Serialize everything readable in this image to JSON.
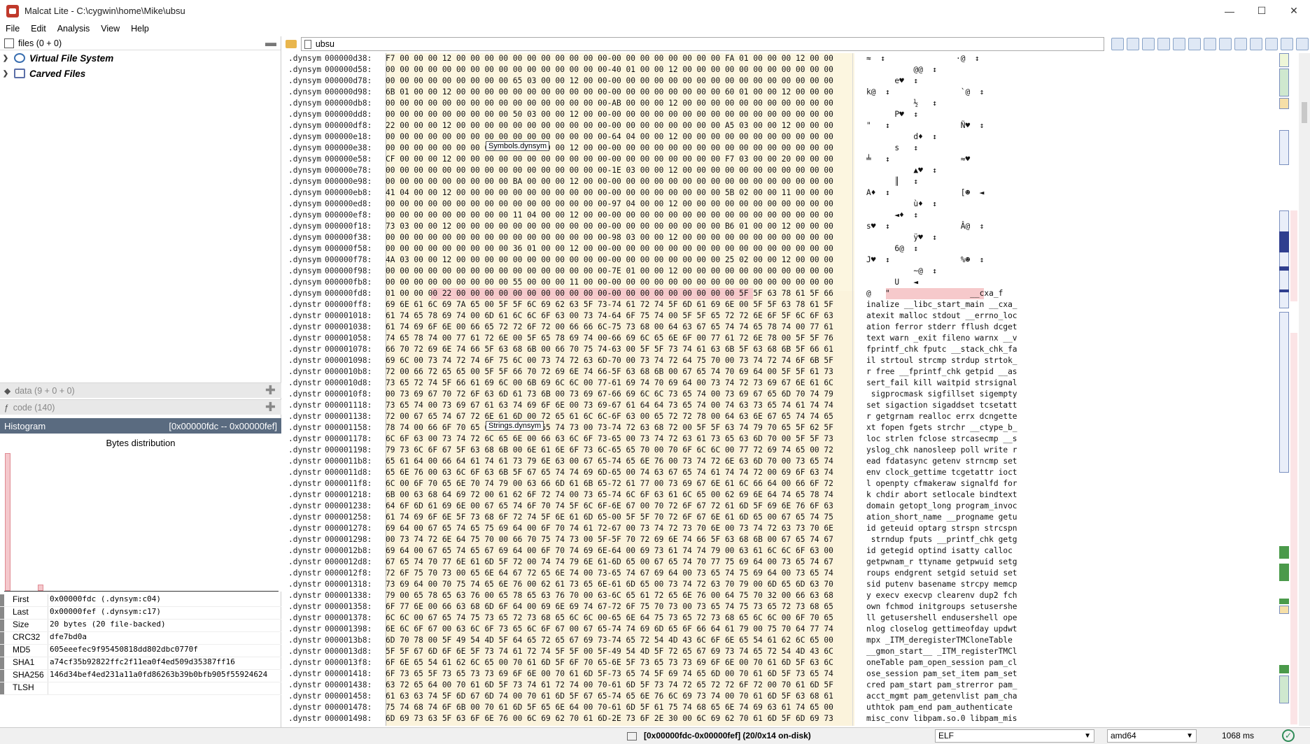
{
  "window": {
    "title": "Malcat Lite - C:\\cygwin\\home\\Mike\\ubsu",
    "minimize": "—",
    "maximize": "☐",
    "close": "✕"
  },
  "menu": [
    "File",
    "Edit",
    "Analysis",
    "View",
    "Help"
  ],
  "files_panel": {
    "header": "files (0 + 0)",
    "items": [
      "Virtual File System",
      "Carved Files"
    ]
  },
  "docks": {
    "data": "data (9 + 0 + 0)",
    "code": "code (140)"
  },
  "histogram": {
    "header": "Histogram",
    "range": "[0x00000fdc -- 0x00000fef]",
    "title": "Bytes distribution"
  },
  "properties": [
    {
      "key": "First",
      "value": "0x00000fdc (.dynsym:c04)"
    },
    {
      "key": "Last",
      "value": "0x00000fef (.dynsym:c17)"
    },
    {
      "key": "Size",
      "value": "20 bytes (20 file-backed)"
    },
    {
      "key": "CRC32",
      "value": "dfe7bd0a"
    },
    {
      "key": "MD5",
      "value": "605eeefec9f95450818dd802dbc0770f"
    },
    {
      "key": "SHA1",
      "value": "a74cf35b92822ffc2f11ea0f4ed509d35387ff16"
    },
    {
      "key": "SHA256",
      "value": "146d34bef4ed231a11a0fd86263b39b0bfb905f55924624"
    },
    {
      "key": "TLSH",
      "value": ""
    }
  ],
  "address_bar": {
    "path": "ubsu"
  },
  "annotations": {
    "symbols": "Symbols.dynsym",
    "strings": "Strings.dynsym"
  },
  "hex_rows": [
    {
      "sec": ".dynsym",
      "addr": "000000d38:",
      "bytes": "F7 00 00 00 12 00 00 00 00 00 00 00 00 00 00 00-00 00 00 00 00 00 00 00 FA 01 00 00 00 12 00 00",
      "ascii": "≈  ↕               ·@  ↕"
    },
    {
      "sec": ".dynsym",
      "addr": "000000d58:",
      "bytes": "00 00 00 00 00 00 00 00 00 00 00 00 00 00 00 00-40 01 00 00 12 00 00 00 00 00 00 00 00 00 00 00",
      "ascii": "          @@  ↕"
    },
    {
      "sec": ".dynsym",
      "addr": "000000d78:",
      "bytes": "00 00 00 00 00 00 00 00 00 65 03 00 00 12 00 00-00 00 00 00 00 00 00 00 00 00 00 00 00 00 00 00",
      "ascii": "      e♥  ↕"
    },
    {
      "sec": ".dynsym",
      "addr": "000000d98:",
      "bytes": "6B 01 00 00 12 00 00 00 00 00 00 00 00 00 00 00-00 00 00 00 00 00 00 00 60 01 00 00 12 00 00 00",
      "ascii": "k@  ↕               `@  ↕"
    },
    {
      "sec": ".dynsym",
      "addr": "000000db8:",
      "bytes": "00 00 00 00 00 00 00 00 00 00 00 00 00 00 00 00-AB 00 00 00 12 00 00 00 00 00 00 00 00 00 00 00",
      "ascii": "          ½   ↕"
    },
    {
      "sec": ".dynsym",
      "addr": "000000dd8:",
      "bytes": "00 00 00 00 00 00 00 00 00 50 03 00 00 12 00 00-00 00 00 00 00 00 00 00 00 00 00 00 00 00 00 00",
      "ascii": "      P♥  ↕"
    },
    {
      "sec": ".dynsym",
      "addr": "000000df8:",
      "bytes": "22 00 00 00 12 00 00 00 00 00 00 00 00 00 00 00-00 00 00 00 00 00 00 00 A5 03 00 00 12 00 00 00",
      "ascii": "\"   ↕               Ñ♥  ↕"
    },
    {
      "sec": ".dynsym",
      "addr": "000000e18:",
      "bytes": "00 00 00 00 00 00 00 00 00 00 00 00 00 00 00 00-64 04 00 00 12 00 00 00 00 00 00 00 00 00 00 00",
      "ascii": "          d♦  ↕"
    },
    {
      "sec": ".dynsym",
      "addr": "000000e38:",
      "bytes": "00 00 00 00 00 00 00 00 00 73 00 00 00 12 00 00-00 00 00 00 00 00 00 00 00 00 00 00 00 00 00 00",
      "ascii": "      s   ↕"
    },
    {
      "sec": ".dynsym",
      "addr": "000000e58:",
      "bytes": "CF 00 00 00 12 00 00 00 00 00 00 00 00 00 00 00-00 00 00 00 00 00 00 00 F7 03 00 00 20 00 00 00",
      "ascii": "╧   ↕               ≈♥"
    },
    {
      "sec": ".dynsym",
      "addr": "000000e78:",
      "bytes": "00 00 00 00 00 00 00 00 00 00 00 00 00 00 00 00-1E 03 00 00 12 00 00 00 00 00 00 00 00 00 00 00",
      "ascii": "          ▲♥  ↕"
    },
    {
      "sec": ".dynsym",
      "addr": "000000e98:",
      "bytes": "00 00 00 00 00 00 00 00 00 BA 00 00 00 12 00 00-00 00 00 00 00 00 00 00 00 00 00 00 00 00 00 00",
      "ascii": "      ║   ↕"
    },
    {
      "sec": ".dynsym",
      "addr": "000000eb8:",
      "bytes": "41 04 00 00 12 00 00 00 00 00 00 00 00 00 00 00-00 00 00 00 00 00 00 00 5B 02 00 00 11 00 00 00",
      "ascii": "A♦  ↕               [☻  ◄"
    },
    {
      "sec": ".dynsym",
      "addr": "000000ed8:",
      "bytes": "00 00 00 00 00 00 00 00 00 00 00 00 00 00 00 00-97 04 00 00 12 00 00 00 00 00 00 00 00 00 00 00",
      "ascii": "          ù♦  ↕"
    },
    {
      "sec": ".dynsym",
      "addr": "000000ef8:",
      "bytes": "00 00 00 00 00 00 00 00 00 11 04 00 00 12 00 00-00 00 00 00 00 00 00 00 00 00 00 00 00 00 00 00",
      "ascii": "      ◄♦  ↕"
    },
    {
      "sec": ".dynsym",
      "addr": "000000f18:",
      "bytes": "73 03 00 00 12 00 00 00 00 00 00 00 00 00 00 00-00 00 00 00 00 00 00 00 B6 01 00 00 12 00 00 00",
      "ascii": "s♥  ↕               Â@  ↕"
    },
    {
      "sec": ".dynsym",
      "addr": "000000f38:",
      "bytes": "00 00 00 00 00 00 00 00 00 00 00 00 00 00 00 00-98 03 00 00 12 00 00 00 00 00 00 00 00 00 00 00",
      "ascii": "          ÿ♥  ↕"
    },
    {
      "sec": ".dynsym",
      "addr": "000000f58:",
      "bytes": "00 00 00 00 00 00 00 00 00 36 01 00 00 12 00 00-00 00 00 00 00 00 00 00 00 00 00 00 00 00 00 00",
      "ascii": "      6@  ↕"
    },
    {
      "sec": ".dynsym",
      "addr": "000000f78:",
      "bytes": "4A 03 00 00 12 00 00 00 00 00 00 00 00 00 00 00-00 00 00 00 00 00 00 00 25 02 00 00 12 00 00 00",
      "ascii": "J♥  ↕               %☻  ↕"
    },
    {
      "sec": ".dynsym",
      "addr": "000000f98:",
      "bytes": "00 00 00 00 00 00 00 00 00 00 00 00 00 00 00 00-7E 01 00 00 12 00 00 00 00 00 00 00 00 00 00 00",
      "ascii": "          ~@  ↕"
    },
    {
      "sec": ".dynsym",
      "addr": "000000fb8:",
      "bytes": "00 00 00 00 00 00 00 00 00 55 00 00 00 11 00 00-00 00 00 00 00 00 00 00 00 00 00 00 00 00 00 00",
      "ascii": "      U   ◄"
    },
    {
      "sec": ".dynsym",
      "addr": "000000fd8:",
      "bytes": "01 00 00 00 22 00 00 00 00 00 00 00 00 00 00 00-00 00 00 00 00 00 00 00 00 5F 5F 63 78 61 5F 66",
      "ascii": "@   \"                 __cxa_f"
    },
    {
      "sec": ".dynstr",
      "addr": "000000ff8:",
      "bytes": "69 6E 61 6C 69 7A 65 00 5F 5F 6C 69 62 63 5F 73-74 61 72 74 5F 6D 61 69 6E 00 5F 5F 63 78 61 5F",
      "ascii": "inalize __libc_start_main __cxa_"
    },
    {
      "sec": ".dynstr",
      "addr": "000001018:",
      "bytes": "61 74 65 78 69 74 00 6D 61 6C 6C 6F 63 00 73 74-64 6F 75 74 00 5F 5F 65 72 72 6E 6F 5F 6C 6F 63",
      "ascii": "atexit malloc stdout __errno_loc"
    },
    {
      "sec": ".dynstr",
      "addr": "000001038:",
      "bytes": "61 74 69 6F 6E 00 66 65 72 72 6F 72 00 66 66 6C-75 73 68 00 64 63 67 65 74 74 65 78 74 00 77 61",
      "ascii": "ation ferror stderr fflush dcget"
    },
    {
      "sec": ".dynstr",
      "addr": "000001058:",
      "bytes": "74 65 78 74 00 77 61 72 6E 00 5F 65 78 69 74 00-66 69 6C 65 6E 6F 00 77 61 72 6E 78 00 5F 5F 76",
      "ascii": "text warn _exit fileno warnx __v"
    },
    {
      "sec": ".dynstr",
      "addr": "000001078:",
      "bytes": "66 70 72 69 6E 74 66 5F 63 68 6B 00 66 70 75 74-63 00 5F 5F 73 74 61 63 6B 5F 63 68 6B 5F 66 61",
      "ascii": "fprintf_chk fputc __stack_chk_fa"
    },
    {
      "sec": ".dynstr",
      "addr": "000001098:",
      "bytes": "69 6C 00 73 74 72 74 6F 75 6C 00 73 74 72 63 6D-70 00 73 74 72 64 75 70 00 73 74 72 74 6F 6B 5F",
      "ascii": "il strtoul strcmp strdup strtok_"
    },
    {
      "sec": ".dynstr",
      "addr": "0000010b8:",
      "bytes": "72 00 66 72 65 65 00 5F 5F 66 70 72 69 6E 74 66-5F 63 68 6B 00 67 65 74 70 69 64 00 5F 5F 61 73",
      "ascii": "r free __fprintf_chk getpid __as"
    },
    {
      "sec": ".dynstr",
      "addr": "0000010d8:",
      "bytes": "73 65 72 74 5F 66 61 69 6C 00 6B 69 6C 6C 00 77-61 69 74 70 69 64 00 73 74 72 73 69 67 6E 61 6C",
      "ascii": "sert_fail kill waitpid strsignal"
    },
    {
      "sec": ".dynstr",
      "addr": "0000010f8:",
      "bytes": "00 73 69 67 70 72 6F 63 6D 61 73 6B 00 73 69 67-66 69 6C 6C 73 65 74 00 73 69 67 65 6D 70 74 79",
      "ascii": " sigprocmask sigfillset sigempty"
    },
    {
      "sec": ".dynstr",
      "addr": "000001118:",
      "bytes": "73 65 74 00 73 69 67 61 63 74 69 6F 6E 00 73 69-67 61 64 64 73 65 74 00 74 63 73 65 74 61 74 74",
      "ascii": "set sigaction sigaddset tcsetatt"
    },
    {
      "sec": ".dynstr",
      "addr": "000001138:",
      "bytes": "72 00 67 65 74 67 72 6E 61 6D 00 72 65 61 6C 6C-6F 63 00 65 72 72 78 00 64 63 6E 67 65 74 74 65",
      "ascii": "r getgrnam realloc errx dcngette"
    },
    {
      "sec": ".dynstr",
      "addr": "000001158:",
      "bytes": "78 74 00 66 6F 70 65 6E 00 66 67 65 74 73 00 73-74 72 63 68 72 00 5F 5F 63 74 79 70 65 5F 62 5F",
      "ascii": "xt fopen fgets strchr __ctype_b_"
    },
    {
      "sec": ".dynstr",
      "addr": "000001178:",
      "bytes": "6C 6F 63 00 73 74 72 6C 65 6E 00 66 63 6C 6F 73-65 00 73 74 72 63 61 73 65 63 6D 70 00 5F 5F 73",
      "ascii": "loc strlen fclose strcasecmp __s"
    },
    {
      "sec": ".dynstr",
      "addr": "000001198:",
      "bytes": "79 73 6C 6F 67 5F 63 68 6B 00 6E 61 6E 6F 73 6C-65 65 70 00 70 6F 6C 6C 00 77 72 69 74 65 00 72",
      "ascii": "yslog_chk nanosleep poll write r"
    },
    {
      "sec": ".dynstr",
      "addr": "0000011b8:",
      "bytes": "65 61 64 00 66 64 61 74 61 73 79 6E 63 00 67 65-74 65 6E 76 00 73 74 72 6E 63 6D 70 00 73 65 74",
      "ascii": "ead fdatasync getenv strncmp set"
    },
    {
      "sec": ".dynstr",
      "addr": "0000011d8:",
      "bytes": "65 6E 76 00 63 6C 6F 63 6B 5F 67 65 74 74 69 6D-65 00 74 63 67 65 74 61 74 74 72 00 69 6F 63 74",
      "ascii": "env clock_gettime tcgetattr ioct"
    },
    {
      "sec": ".dynstr",
      "addr": "0000011f8:",
      "bytes": "6C 00 6F 70 65 6E 70 74 79 00 63 66 6D 61 6B 65-72 61 77 00 73 69 67 6E 61 6C 66 64 00 66 6F 72",
      "ascii": "l openpty cfmakeraw signalfd for"
    },
    {
      "sec": ".dynstr",
      "addr": "000001218:",
      "bytes": "6B 00 63 68 64 69 72 00 61 62 6F 72 74 00 73 65-74 6C 6F 63 61 6C 65 00 62 69 6E 64 74 65 78 74",
      "ascii": "k chdir abort setlocale bindtext"
    },
    {
      "sec": ".dynstr",
      "addr": "000001238:",
      "bytes": "64 6F 6D 61 69 6E 00 67 65 74 6F 70 74 5F 6C 6F-6E 67 00 70 72 6F 67 72 61 6D 5F 69 6E 76 6F 63",
      "ascii": "domain getopt_long program_invoc"
    },
    {
      "sec": ".dynstr",
      "addr": "000001258:",
      "bytes": "61 74 69 6F 6E 5F 73 68 6F 72 74 5F 6E 61 6D 65-00 5F 5F 70 72 6F 67 6E 61 6D 65 00 67 65 74 75",
      "ascii": "ation_short_name __progname getu"
    },
    {
      "sec": ".dynstr",
      "addr": "000001278:",
      "bytes": "69 64 00 67 65 74 65 75 69 64 00 6F 70 74 61 72-67 00 73 74 72 73 70 6E 00 73 74 72 63 73 70 6E",
      "ascii": "id geteuid optarg strspn strcspn"
    },
    {
      "sec": ".dynstr",
      "addr": "000001298:",
      "bytes": "00 73 74 72 6E 64 75 70 00 66 70 75 74 73 00 5F-5F 70 72 69 6E 74 66 5F 63 68 6B 00 67 65 74 67",
      "ascii": " strndup fputs __printf_chk getg"
    },
    {
      "sec": ".dynstr",
      "addr": "0000012b8:",
      "bytes": "69 64 00 67 65 74 65 67 69 64 00 6F 70 74 69 6E-64 00 69 73 61 74 74 79 00 63 61 6C 6C 6F 63 00",
      "ascii": "id getegid optind isatty calloc"
    },
    {
      "sec": ".dynstr",
      "addr": "0000012d8:",
      "bytes": "67 65 74 70 77 6E 61 6D 5F 72 00 74 74 79 6E 61-6D 65 00 67 65 74 70 77 75 69 64 00 73 65 74 67",
      "ascii": "getpwnam_r ttyname getpwuid setg"
    },
    {
      "sec": ".dynstr",
      "addr": "0000012f8:",
      "bytes": "72 6F 75 70 73 00 65 6E 64 67 72 65 6E 74 00 73-65 74 67 69 64 00 73 65 74 75 69 64 00 73 65 74",
      "ascii": "roups endgrent setgid setuid set"
    },
    {
      "sec": ".dynstr",
      "addr": "000001318:",
      "bytes": "73 69 64 00 70 75 74 65 6E 76 00 62 61 73 65 6E-61 6D 65 00 73 74 72 63 70 79 00 6D 65 6D 63 70",
      "ascii": "sid putenv basename strcpy memcp"
    },
    {
      "sec": ".dynstr",
      "addr": "000001338:",
      "bytes": "79 00 65 78 65 63 76 00 65 78 65 63 76 70 00 63-6C 65 61 72 65 6E 76 00 64 75 70 32 00 66 63 68",
      "ascii": "y execv execvp clearenv dup2 fch"
    },
    {
      "sec": ".dynstr",
      "addr": "000001358:",
      "bytes": "6F 77 6E 00 66 63 68 6D 6F 64 00 69 6E 69 74 67-72 6F 75 70 73 00 73 65 74 75 73 65 72 73 68 65",
      "ascii": "own fchmod initgroups setusershe"
    },
    {
      "sec": ".dynstr",
      "addr": "000001378:",
      "bytes": "6C 6C 00 67 65 74 75 73 65 72 73 68 65 6C 6C 00-65 6E 64 75 73 65 72 73 68 65 6C 6C 00 6F 70 65",
      "ascii": "ll getusershell endusershell ope"
    },
    {
      "sec": ".dynstr",
      "addr": "000001398:",
      "bytes": "6E 6C 6F 67 00 63 6C 6F 73 65 6C 6F 67 00 67 65-74 74 69 6D 65 6F 66 64 61 79 00 75 70 64 77 74",
      "ascii": "nlog closelog gettimeofday updwt"
    },
    {
      "sec": ".dynstr",
      "addr": "0000013b8:",
      "bytes": "6D 70 78 00 5F 49 54 4D 5F 64 65 72 65 67 69 73-74 65 72 54 4D 43 6C 6F 6E 65 54 61 62 6C 65 00",
      "ascii": "mpx _ITM_deregisterTMCloneTable"
    },
    {
      "sec": ".dynstr",
      "addr": "0000013d8:",
      "bytes": "5F 5F 67 6D 6F 6E 5F 73 74 61 72 74 5F 5F 00 5F-49 54 4D 5F 72 65 67 69 73 74 65 72 54 4D 43 6C",
      "ascii": "__gmon_start__ _ITM_registerTMCl"
    },
    {
      "sec": ".dynstr",
      "addr": "0000013f8:",
      "bytes": "6F 6E 65 54 61 62 6C 65 00 70 61 6D 5F 6F 70 65-6E 5F 73 65 73 73 69 6F 6E 00 70 61 6D 5F 63 6C",
      "ascii": "oneTable pam_open_session pam_cl"
    },
    {
      "sec": ".dynstr",
      "addr": "000001418:",
      "bytes": "6F 73 65 5F 73 65 73 73 69 6F 6E 00 70 61 6D 5F-73 65 74 5F 69 74 65 6D 00 70 61 6D 5F 73 65 74",
      "ascii": "ose_session pam_set_item pam_set"
    },
    {
      "sec": ".dynstr",
      "addr": "000001438:",
      "bytes": "63 72 65 64 00 70 61 6D 5F 73 74 61 72 74 00 70-61 6D 5F 73 74 72 65 72 72 6F 72 00 70 61 6D 5F",
      "ascii": "cred pam_start pam_strerror pam_"
    },
    {
      "sec": ".dynstr",
      "addr": "000001458:",
      "bytes": "61 63 63 74 5F 6D 67 6D 74 00 70 61 6D 5F 67 65-74 65 6E 76 6C 69 73 74 00 70 61 6D 5F 63 68 61",
      "ascii": "acct_mgmt pam_getenvlist pam_cha"
    },
    {
      "sec": ".dynstr",
      "addr": "000001478:",
      "bytes": "75 74 68 74 6F 6B 00 70 61 6D 5F 65 6E 64 00 70-61 6D 5F 61 75 74 68 65 6E 74 69 63 61 74 65 00",
      "ascii": "uthtok pam_end pam_authenticate"
    },
    {
      "sec": ".dynstr",
      "addr": "000001498:",
      "bytes": "6D 69 73 63 5F 63 6F 6E 76 00 6C 69 62 70 61 6D-2E 73 6F 2E 30 00 6C 69 62 70 61 6D 5F 6D 69 73",
      "ascii": "misc_conv libpam.so.0 libpam_mis"
    }
  ],
  "status": {
    "selection": "[0x00000fdc-0x00000fef] (20/0x14 on-disk)",
    "format": "ELF",
    "arch": "amd64",
    "time": "1068 ms"
  }
}
